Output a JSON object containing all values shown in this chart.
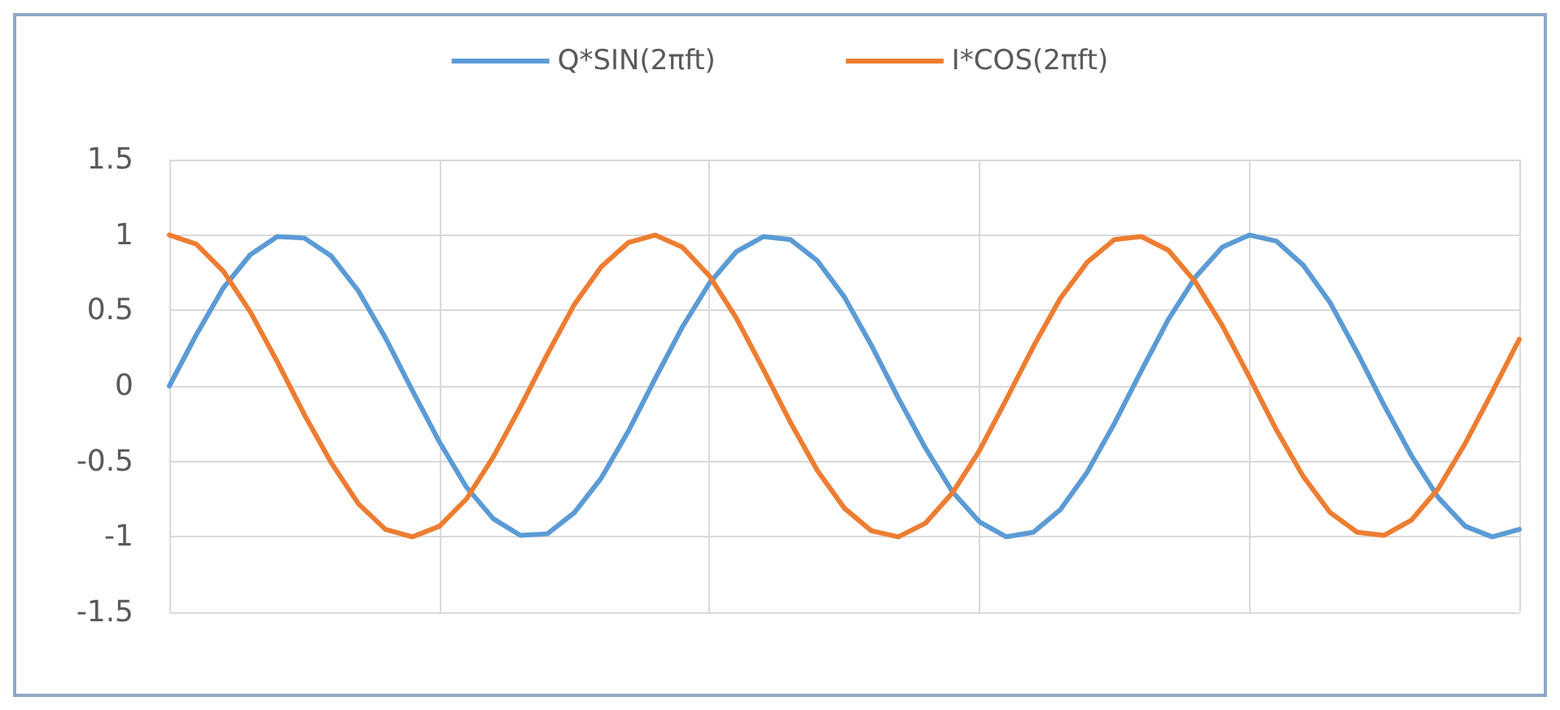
{
  "chart_data": {
    "type": "line",
    "legend": "top",
    "grid": true,
    "tick_labels": "y",
    "marker": "none",
    "line_style": "solid",
    "ylim": [
      -1.5,
      1.5
    ],
    "yticks": [
      -1.5,
      -1,
      -0.5,
      0,
      0.5,
      1,
      1.5
    ],
    "categories": [
      null,
      null,
      null,
      null,
      null,
      null,
      null,
      null,
      null,
      null,
      null,
      null,
      null,
      null,
      null,
      null,
      null,
      null,
      null,
      null,
      null,
      null,
      null,
      null,
      null,
      null,
      null,
      null,
      null,
      null,
      null,
      null,
      null,
      null,
      null,
      null,
      null,
      null,
      null,
      null,
      null,
      null,
      null,
      null,
      null,
      null,
      null,
      null,
      null,
      null,
      null
    ],
    "series": [
      {
        "name": "Q*SIN(2πft)",
        "color": "#5b9bd5",
        "values": [
          0,
          0.34,
          0.65,
          0.87,
          0.99,
          0.98,
          0.86,
          0.63,
          0.32,
          -0.03,
          -0.37,
          -0.67,
          -0.88,
          -0.99,
          -0.98,
          -0.84,
          -0.61,
          -0.3,
          0.05,
          0.39,
          0.68,
          0.89,
          0.99,
          0.97,
          0.83,
          0.59,
          0.27,
          -0.08,
          -0.41,
          -0.7,
          -0.9,
          -1,
          -0.97,
          -0.82,
          -0.57,
          -0.25,
          0.1,
          0.44,
          0.72,
          0.92,
          1,
          0.96,
          0.8,
          0.55,
          0.22,
          -0.13,
          -0.46,
          -0.74,
          -0.93,
          -1,
          -0.95
        ]
      },
      {
        "name": "I*COS(2πft)",
        "color": "#ed7d31",
        "values": [
          1,
          0.94,
          0.76,
          0.49,
          0.16,
          -0.19,
          -0.51,
          -0.78,
          -0.95,
          -1,
          -0.93,
          -0.75,
          -0.47,
          -0.14,
          0.21,
          0.54,
          0.79,
          0.95,
          1,
          0.92,
          0.73,
          0.45,
          0.11,
          -0.24,
          -0.56,
          -0.81,
          -0.96,
          -1,
          -0.91,
          -0.71,
          -0.43,
          -0.09,
          0.26,
          0.58,
          0.82,
          0.97,
          0.99,
          0.9,
          0.69,
          0.4,
          0.06,
          -0.29,
          -0.6,
          -0.84,
          -0.97,
          -0.99,
          -0.89,
          -0.68,
          -0.38,
          -0.04,
          0.31
        ]
      }
    ]
  }
}
